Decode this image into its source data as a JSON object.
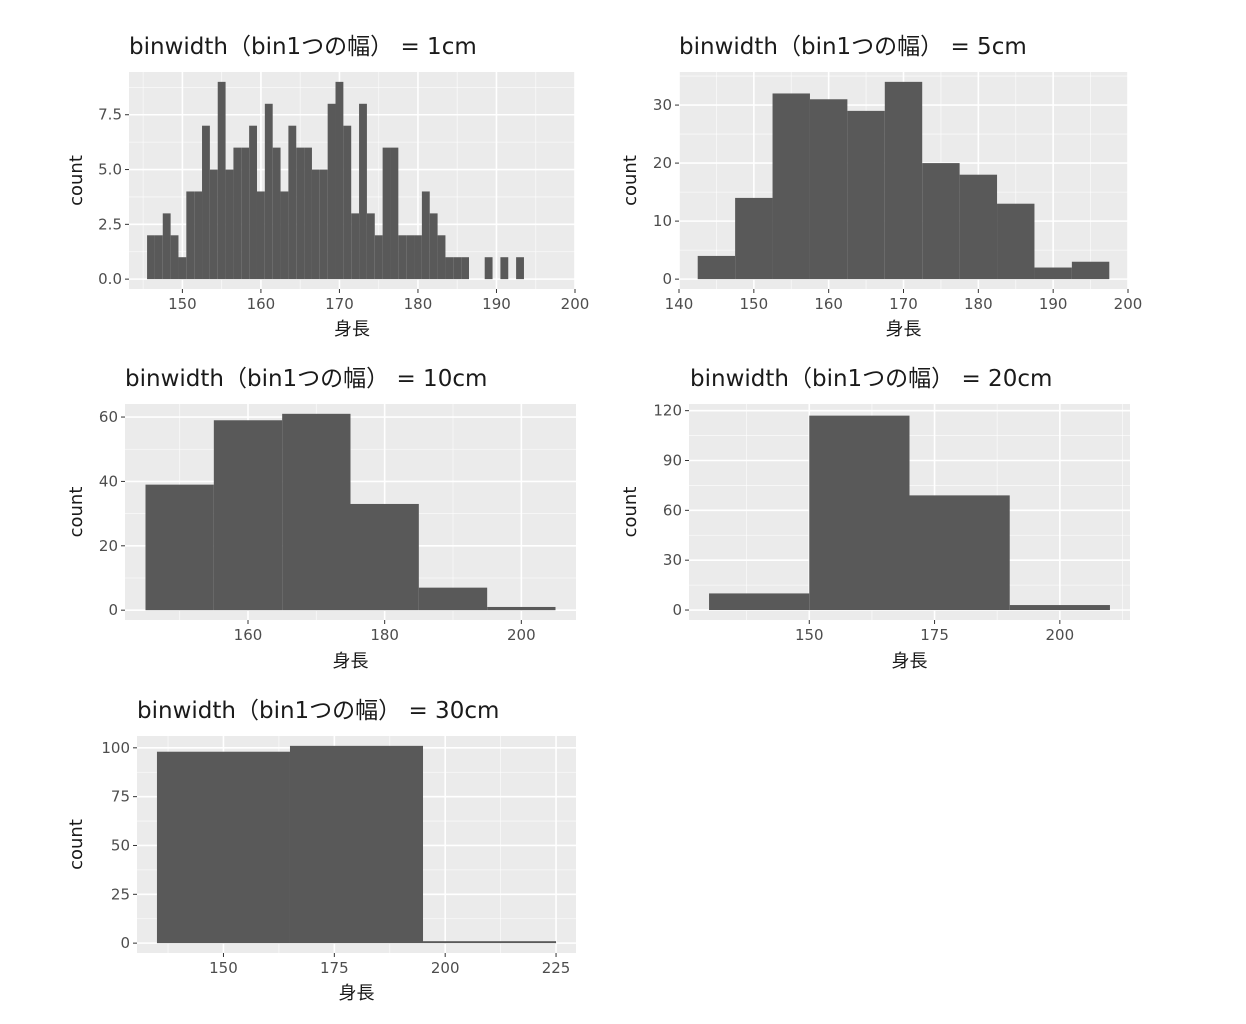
{
  "colors": {
    "panel_bg": "#ebebeb",
    "grid_major": "#ffffff",
    "bar_fill": "#595959",
    "tick_color": "#333333"
  },
  "chart_data": [
    {
      "type": "bar",
      "title": "binwidth（bin1つの幅） = 1cm",
      "xlabel": "身長",
      "ylabel": "count",
      "xlim": [
        143.2,
        200.0
      ],
      "ylim": [
        -0.45,
        9.45
      ],
      "xticks": [
        150,
        160,
        170,
        180,
        190,
        200
      ],
      "xtick_labels": [
        "150",
        "160",
        "170",
        "180",
        "190",
        "200"
      ],
      "yticks": [
        0,
        2.5,
        5,
        7.5
      ],
      "ytick_labels": [
        "0.0",
        "2.5",
        "5.0",
        "7.5"
      ],
      "binwidth": 1,
      "bin_start": 145.5,
      "values": [
        2,
        2,
        3,
        2,
        1,
        4,
        4,
        7,
        5,
        9,
        5,
        6,
        6,
        7,
        4,
        8,
        6,
        4,
        7,
        6,
        6,
        5,
        5,
        8,
        9,
        7,
        3,
        8,
        3,
        2,
        6,
        6,
        2,
        2,
        2,
        4,
        3,
        2,
        1,
        1,
        1,
        0,
        0,
        1,
        0,
        1,
        0,
        1
      ]
    },
    {
      "type": "bar",
      "title": "binwidth（bin1つの幅） = 5cm",
      "xlabel": "身長",
      "ylabel": "count",
      "xlim": [
        140.0,
        200.0
      ],
      "ylim": [
        -1.7,
        35.7
      ],
      "xticks": [
        140,
        150,
        160,
        170,
        180,
        190,
        200
      ],
      "xtick_labels": [
        "140",
        "150",
        "160",
        "170",
        "180",
        "190",
        "200"
      ],
      "yticks": [
        0,
        10,
        20,
        30
      ],
      "ytick_labels": [
        "0",
        "10",
        "20",
        "30"
      ],
      "binwidth": 5,
      "bin_start": 142.5,
      "values": [
        4,
        14,
        32,
        31,
        29,
        34,
        20,
        18,
        13,
        2,
        3
      ]
    },
    {
      "type": "bar",
      "title": "binwidth（bin1つの幅） = 10cm",
      "xlabel": "身長",
      "ylabel": "count",
      "xlim": [
        142.0,
        208.0
      ],
      "ylim": [
        -3.05,
        64.05
      ],
      "xticks": [
        160,
        180,
        200
      ],
      "xtick_labels": [
        "160",
        "180",
        "200"
      ],
      "yticks": [
        0,
        20,
        40,
        60
      ],
      "ytick_labels": [
        "0",
        "20",
        "40",
        "60"
      ],
      "binwidth": 10,
      "bin_start": 145,
      "values": [
        39,
        59,
        61,
        33,
        7,
        1
      ]
    },
    {
      "type": "bar",
      "title": "binwidth（bin1つの幅） = 20cm",
      "xlabel": "身長",
      "ylabel": "count",
      "xlim": [
        126.0,
        214.0
      ],
      "ylim": [
        -6.0,
        124.0
      ],
      "xticks": [
        150,
        175,
        200
      ],
      "xtick_labels": [
        "150",
        "175",
        "200"
      ],
      "yticks": [
        0,
        30,
        60,
        90,
        120
      ],
      "ytick_labels": [
        "0",
        "30",
        "60",
        "90",
        "120"
      ],
      "binwidth": 20,
      "bin_start": 130,
      "values": [
        10,
        117,
        69,
        3
      ]
    },
    {
      "type": "bar",
      "title": "binwidth（bin1つの幅） = 30cm",
      "xlabel": "身長",
      "ylabel": "count",
      "xlim": [
        130.5,
        229.5
      ],
      "ylim": [
        -5.05,
        106.05
      ],
      "xticks": [
        150,
        175,
        200,
        225
      ],
      "xtick_labels": [
        "150",
        "175",
        "200",
        "225"
      ],
      "yticks": [
        0,
        25,
        50,
        75,
        100
      ],
      "ytick_labels": [
        "0",
        "25",
        "50",
        "75",
        "100"
      ],
      "binwidth": 30,
      "bin_start": 135,
      "values": [
        98,
        101,
        1
      ]
    }
  ]
}
